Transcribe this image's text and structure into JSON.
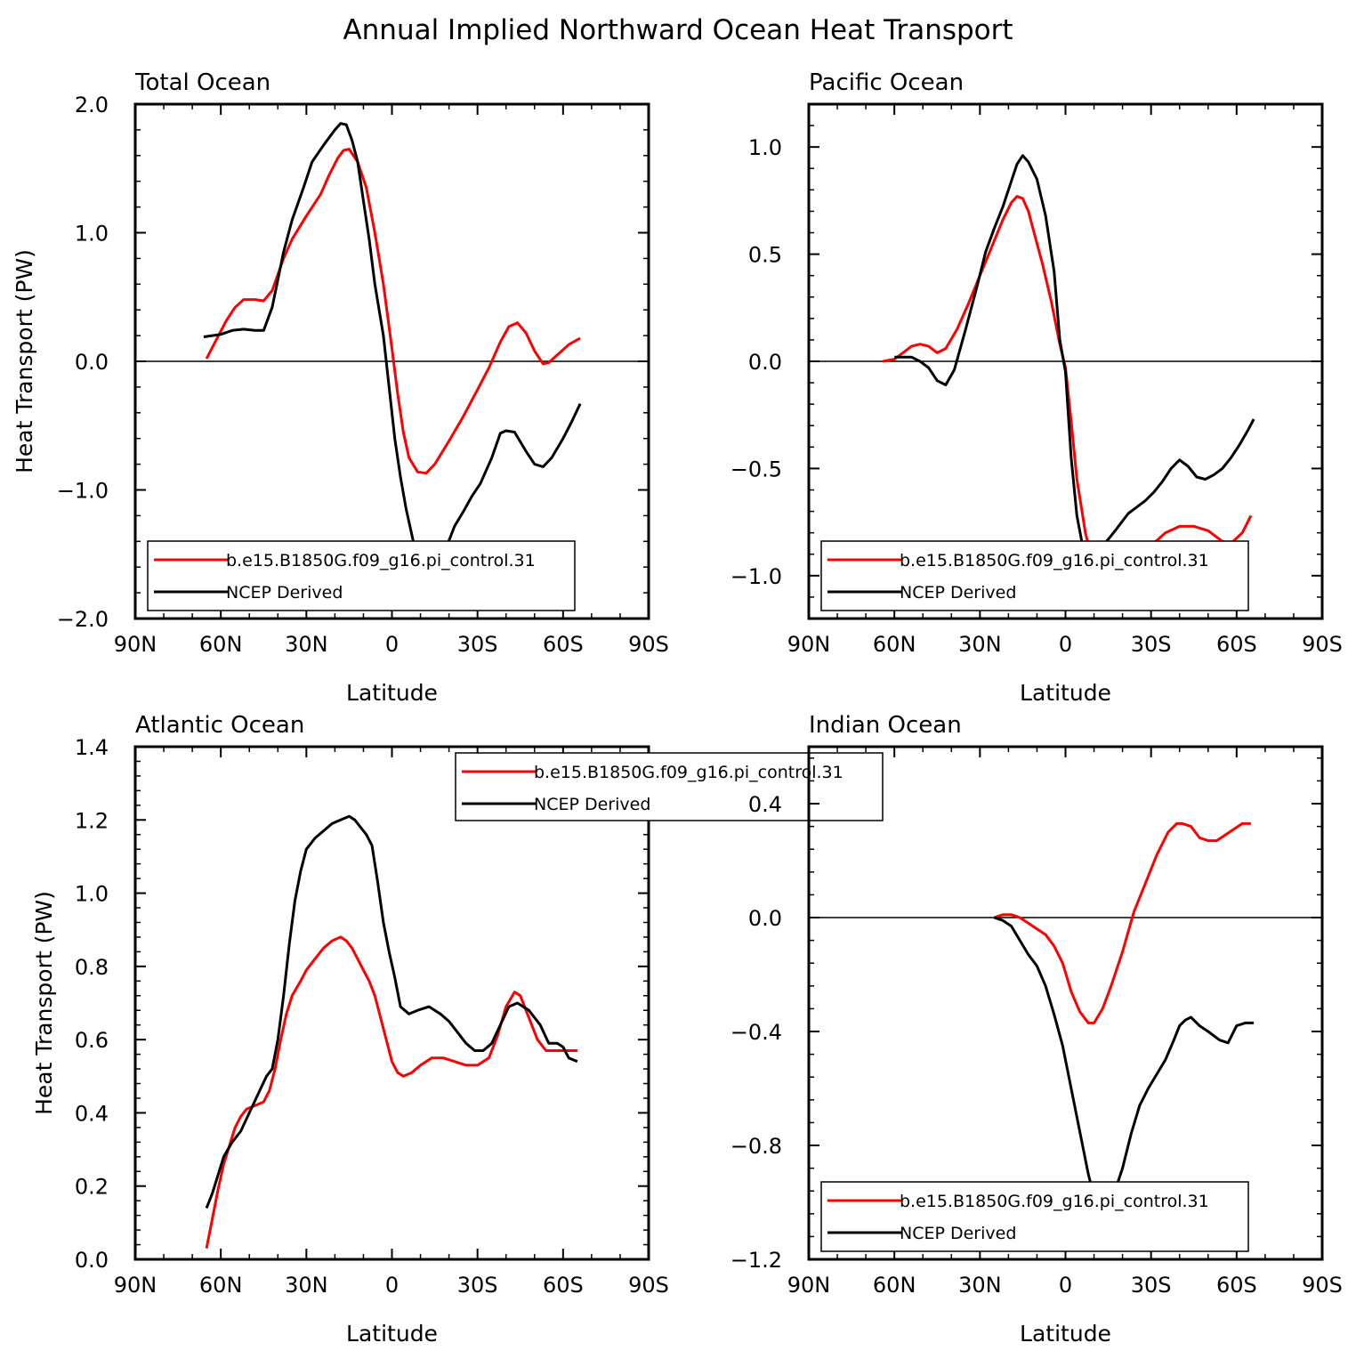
{
  "title": "Annual Implied Northward Ocean Heat Transport",
  "colors": {
    "model": "#ff0000",
    "obs": "#000000",
    "axis": "#000000",
    "background": "#ffffff"
  },
  "chart_data": [
    {
      "type": "line",
      "subtitle": "Total Ocean",
      "xlabel": "Latitude",
      "ylabel": "Heat Transport (PW)",
      "xlim": [
        90,
        -90
      ],
      "ylim": [
        -2.0,
        2.0
      ],
      "x_ticks": [
        90,
        60,
        30,
        0,
        -30,
        -60,
        -90
      ],
      "x_tick_labels": [
        "90N",
        "60N",
        "30N",
        "0",
        "30S",
        "60S",
        "90S"
      ],
      "y_ticks": [
        -2.0,
        -1.0,
        0.0,
        1.0,
        2.0
      ],
      "y_tick_labels": [
        "−2.0",
        "−1.0",
        "0.0",
        "1.0",
        "2.0"
      ],
      "zero_line": true,
      "legend": {
        "position": "bottom-left"
      },
      "series": [
        {
          "name": "b.e15.B1850G.f09_g16.pi_control.31",
          "color": "#ff0000",
          "x": [
            65,
            62,
            58,
            55,
            52,
            48,
            45,
            42,
            38,
            35,
            30,
            25,
            22,
            19,
            17,
            15,
            12,
            9,
            6,
            3,
            0,
            -2,
            -4,
            -6,
            -9,
            -12,
            -15,
            -20,
            -25,
            -30,
            -34,
            -38,
            -41,
            -44,
            -47,
            -50,
            -53,
            -55,
            -58,
            -62,
            -66
          ],
          "y": [
            0.02,
            0.15,
            0.32,
            0.42,
            0.48,
            0.48,
            0.47,
            0.55,
            0.8,
            0.95,
            1.13,
            1.3,
            1.45,
            1.58,
            1.64,
            1.65,
            1.55,
            1.35,
            1.0,
            0.6,
            0.1,
            -0.25,
            -0.55,
            -0.75,
            -0.86,
            -0.87,
            -0.8,
            -0.62,
            -0.43,
            -0.22,
            -0.05,
            0.15,
            0.27,
            0.3,
            0.22,
            0.08,
            -0.02,
            -0.01,
            0.05,
            0.13,
            0.18
          ]
        },
        {
          "name": "NCEP Derived",
          "color": "#000000",
          "x": [
            66,
            63,
            60,
            56,
            52,
            48,
            45,
            42,
            38,
            35,
            31,
            28,
            24,
            20,
            18,
            16,
            14,
            12,
            10,
            8,
            6,
            3,
            1,
            -1,
            -3,
            -5,
            -8,
            -10,
            -13,
            -16,
            -19,
            -22,
            -25,
            -28,
            -31,
            -35,
            -38,
            -40,
            -43,
            -47,
            -50,
            -53,
            -56,
            -60,
            -63,
            -66
          ],
          "y": [
            0.19,
            0.2,
            0.21,
            0.24,
            0.25,
            0.24,
            0.24,
            0.42,
            0.85,
            1.1,
            1.35,
            1.55,
            1.68,
            1.8,
            1.85,
            1.84,
            1.72,
            1.55,
            1.25,
            0.95,
            0.6,
            0.2,
            -0.2,
            -0.6,
            -0.9,
            -1.15,
            -1.45,
            -1.65,
            -1.68,
            -1.58,
            -1.45,
            -1.28,
            -1.17,
            -1.05,
            -0.95,
            -0.75,
            -0.56,
            -0.54,
            -0.55,
            -0.7,
            -0.8,
            -0.82,
            -0.75,
            -0.6,
            -0.47,
            -0.33
          ]
        }
      ]
    },
    {
      "type": "line",
      "subtitle": "Pacific Ocean",
      "xlabel": "Latitude",
      "ylabel": "",
      "xlim": [
        90,
        -90
      ],
      "ylim": [
        -1.2,
        1.2
      ],
      "x_ticks": [
        90,
        60,
        30,
        0,
        -30,
        -60,
        -90
      ],
      "x_tick_labels": [
        "90N",
        "60N",
        "30N",
        "0",
        "30S",
        "60S",
        "90S"
      ],
      "y_ticks": [
        -1.0,
        -0.5,
        0.0,
        0.5,
        1.0
      ],
      "y_tick_labels": [
        "−1.0",
        "−0.5",
        "0.0",
        "0.5",
        "1.0"
      ],
      "zero_line": true,
      "legend": {
        "position": "bottom-left"
      },
      "series": [
        {
          "name": "b.e15.B1850G.f09_g16.pi_control.31",
          "color": "#ff0000",
          "x": [
            64,
            60,
            57,
            54,
            51,
            48,
            45,
            42,
            38,
            34,
            30,
            26,
            22,
            19,
            17,
            15,
            13,
            11,
            8,
            5,
            2,
            0,
            -2,
            -4,
            -7,
            -10,
            -13,
            -16,
            -20,
            -25,
            -30,
            -35,
            -40,
            -45,
            -50,
            -55,
            -58,
            -62,
            -65
          ],
          "y": [
            0.0,
            0.01,
            0.04,
            0.07,
            0.08,
            0.07,
            0.04,
            0.06,
            0.15,
            0.27,
            0.4,
            0.53,
            0.66,
            0.74,
            0.77,
            0.76,
            0.7,
            0.6,
            0.45,
            0.28,
            0.08,
            -0.03,
            -0.28,
            -0.55,
            -0.8,
            -0.96,
            -1.02,
            -1.03,
            -1.0,
            -0.93,
            -0.86,
            -0.8,
            -0.77,
            -0.77,
            -0.79,
            -0.84,
            -0.85,
            -0.8,
            -0.72
          ]
        },
        {
          "name": "NCEP Derived",
          "color": "#000000",
          "x": [
            60,
            57,
            54,
            51,
            48,
            45,
            42,
            39,
            35,
            31,
            28,
            25,
            22,
            19,
            17,
            15,
            13,
            10,
            7,
            4,
            2,
            0,
            -2,
            -4,
            -6,
            -9,
            -11,
            -13,
            -15,
            -18,
            -22,
            -25,
            -28,
            -31,
            -34,
            -37,
            -40,
            -43,
            -46,
            -49,
            -52,
            -55,
            -58,
            -61,
            -64,
            -66
          ],
          "y": [
            0.02,
            0.02,
            0.02,
            0.0,
            -0.03,
            -0.09,
            -0.11,
            -0.04,
            0.15,
            0.35,
            0.51,
            0.62,
            0.72,
            0.84,
            0.92,
            0.96,
            0.93,
            0.85,
            0.68,
            0.42,
            0.1,
            -0.05,
            -0.45,
            -0.72,
            -0.86,
            -0.92,
            -0.9,
            -0.86,
            -0.83,
            -0.78,
            -0.71,
            -0.68,
            -0.65,
            -0.61,
            -0.56,
            -0.5,
            -0.46,
            -0.49,
            -0.54,
            -0.55,
            -0.53,
            -0.5,
            -0.45,
            -0.39,
            -0.32,
            -0.27
          ]
        }
      ]
    },
    {
      "type": "line",
      "subtitle": "Atlantic Ocean",
      "xlabel": "Latitude",
      "ylabel": "Heat Transport (PW)",
      "xlim": [
        90,
        -90
      ],
      "ylim": [
        0.0,
        1.4
      ],
      "x_ticks": [
        90,
        60,
        30,
        0,
        -30,
        -60,
        -90
      ],
      "x_tick_labels": [
        "90N",
        "60N",
        "30N",
        "0",
        "30S",
        "60S",
        "90S"
      ],
      "y_ticks": [
        0.0,
        0.2,
        0.4,
        0.6,
        0.8,
        1.0,
        1.2,
        1.4
      ],
      "y_tick_labels": [
        "0.0",
        "0.2",
        "0.4",
        "0.6",
        "0.8",
        "1.0",
        "1.2",
        "1.4"
      ],
      "zero_line": false,
      "legend": {
        "position": "top-center"
      },
      "series": [
        {
          "name": "b.e15.B1850G.f09_g16.pi_control.31",
          "color": "#ff0000",
          "x": [
            65,
            63,
            61,
            59,
            57,
            55,
            53,
            51,
            48,
            45,
            43,
            41,
            39,
            37,
            35,
            32,
            30,
            27,
            24,
            21,
            18,
            16,
            14,
            12,
            10,
            8,
            6,
            4,
            2,
            0,
            -2,
            -4,
            -7,
            -10,
            -14,
            -18,
            -22,
            -26,
            -30,
            -34,
            -37,
            -40,
            -43,
            -45,
            -48,
            -51,
            -54,
            -57,
            -60,
            -63,
            -65
          ],
          "y": [
            0.03,
            0.11,
            0.19,
            0.26,
            0.31,
            0.36,
            0.39,
            0.41,
            0.42,
            0.43,
            0.46,
            0.52,
            0.6,
            0.67,
            0.72,
            0.76,
            0.79,
            0.82,
            0.85,
            0.87,
            0.88,
            0.87,
            0.85,
            0.82,
            0.79,
            0.76,
            0.72,
            0.66,
            0.6,
            0.54,
            0.51,
            0.5,
            0.51,
            0.53,
            0.55,
            0.55,
            0.54,
            0.53,
            0.53,
            0.55,
            0.61,
            0.69,
            0.73,
            0.72,
            0.66,
            0.6,
            0.57,
            0.57,
            0.57,
            0.57,
            0.57
          ]
        },
        {
          "name": "NCEP Derived",
          "color": "#000000",
          "x": [
            65,
            63,
            61,
            59,
            56,
            53,
            50,
            47,
            44,
            42,
            40,
            38,
            36,
            34,
            32,
            30,
            27,
            24,
            21,
            18,
            15,
            13,
            11,
            9,
            7,
            5,
            3,
            1,
            -1,
            -3,
            -6,
            -9,
            -13,
            -17,
            -20,
            -23,
            -26,
            -29,
            -32,
            -35,
            -38,
            -41,
            -44,
            -48,
            -52,
            -55,
            -58,
            -60,
            -62,
            -65
          ],
          "y": [
            0.14,
            0.18,
            0.23,
            0.28,
            0.32,
            0.35,
            0.4,
            0.45,
            0.5,
            0.52,
            0.6,
            0.72,
            0.86,
            0.98,
            1.06,
            1.12,
            1.15,
            1.17,
            1.19,
            1.2,
            1.21,
            1.2,
            1.18,
            1.16,
            1.13,
            1.03,
            0.92,
            0.84,
            0.77,
            0.69,
            0.67,
            0.68,
            0.69,
            0.67,
            0.65,
            0.62,
            0.59,
            0.57,
            0.57,
            0.59,
            0.64,
            0.69,
            0.7,
            0.68,
            0.64,
            0.59,
            0.59,
            0.58,
            0.55,
            0.54
          ]
        }
      ]
    },
    {
      "type": "line",
      "subtitle": "Indian Ocean",
      "xlabel": "Latitude",
      "ylabel": "",
      "xlim": [
        90,
        -90
      ],
      "ylim": [
        -1.2,
        0.6
      ],
      "x_ticks": [
        90,
        60,
        30,
        0,
        -30,
        -60,
        -90
      ],
      "x_tick_labels": [
        "90N",
        "60N",
        "30N",
        "0",
        "30S",
        "60S",
        "90S"
      ],
      "y_ticks": [
        -1.2,
        -0.8,
        -0.4,
        0.0,
        0.4
      ],
      "y_tick_labels": [
        "−1.2",
        "−0.8",
        "−0.4",
        "0.0",
        "0.4"
      ],
      "zero_line": true,
      "legend": {
        "position": "bottom-left"
      },
      "series": [
        {
          "name": "b.e15.B1850G.f09_g16.pi_control.31",
          "color": "#ff0000",
          "x": [
            25,
            22,
            19,
            16,
            13,
            10,
            7,
            4,
            1,
            -2,
            -5,
            -8,
            -10,
            -13,
            -16,
            -20,
            -24,
            -28,
            -32,
            -36,
            -39,
            -41,
            -44,
            -47,
            -50,
            -53,
            -56,
            -59,
            -62,
            -65
          ],
          "y": [
            0.0,
            0.01,
            0.01,
            0.0,
            -0.02,
            -0.04,
            -0.06,
            -0.1,
            -0.16,
            -0.26,
            -0.33,
            -0.37,
            -0.37,
            -0.32,
            -0.24,
            -0.12,
            0.02,
            0.12,
            0.22,
            0.3,
            0.33,
            0.33,
            0.32,
            0.28,
            0.27,
            0.27,
            0.29,
            0.31,
            0.33,
            0.33
          ]
        },
        {
          "name": "NCEP Derived",
          "color": "#000000",
          "x": [
            25,
            22,
            19,
            16,
            13,
            10,
            7,
            4,
            1,
            -2,
            -5,
            -8,
            -10,
            -12,
            -14,
            -17,
            -20,
            -23,
            -26,
            -29,
            -32,
            -35,
            -38,
            -40,
            -42,
            -44,
            -47,
            -50,
            -54,
            -57,
            -60,
            -63,
            -66
          ],
          "y": [
            0.0,
            -0.01,
            -0.03,
            -0.08,
            -0.13,
            -0.17,
            -0.24,
            -0.34,
            -0.45,
            -0.6,
            -0.75,
            -0.9,
            -0.98,
            -1.05,
            -1.03,
            -0.97,
            -0.88,
            -0.76,
            -0.66,
            -0.6,
            -0.55,
            -0.5,
            -0.43,
            -0.38,
            -0.36,
            -0.35,
            -0.38,
            -0.4,
            -0.43,
            -0.44,
            -0.38,
            -0.37,
            -0.37
          ]
        }
      ]
    }
  ]
}
